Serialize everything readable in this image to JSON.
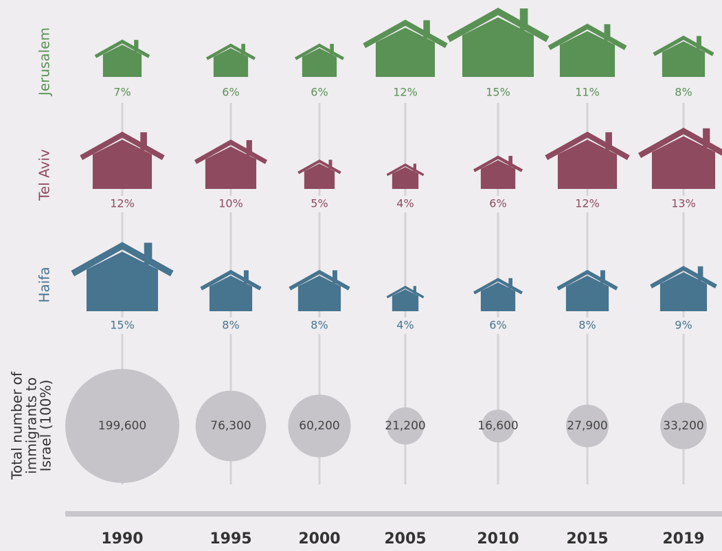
{
  "chart_data": {
    "type": "pictogram",
    "categories": [
      "1990",
      "1995",
      "2000",
      "2005",
      "2010",
      "2015",
      "2019"
    ],
    "series": [
      {
        "name": "Jerusalem",
        "color": "#5a9155",
        "values": [
          7,
          6,
          6,
          12,
          15,
          11,
          8
        ],
        "value_labels": [
          "7%",
          "6%",
          "6%",
          "12%",
          "15%",
          "11%",
          "8%"
        ]
      },
      {
        "name": "Tel Aviv",
        "color": "#8e4a5f",
        "values": [
          12,
          10,
          5,
          4,
          6,
          12,
          13
        ],
        "value_labels": [
          "12%",
          "10%",
          "5%",
          "4%",
          "6%",
          "12%",
          "13%"
        ]
      },
      {
        "name": "Haifa",
        "color": "#47748f",
        "values": [
          15,
          8,
          8,
          4,
          6,
          8,
          9
        ],
        "value_labels": [
          "15%",
          "8%",
          "8%",
          "4%",
          "6%",
          "8%",
          "9%"
        ]
      },
      {
        "name": "Total number of immigrants to Israel (100%)",
        "color": "#c6c4c8",
        "values": [
          199600,
          76300,
          60200,
          21200,
          16600,
          27900,
          33200
        ],
        "value_labels": [
          "199,600",
          "76,300",
          "60,200",
          "21,200",
          "16,600",
          "27,900",
          "33,200"
        ]
      }
    ]
  }
}
